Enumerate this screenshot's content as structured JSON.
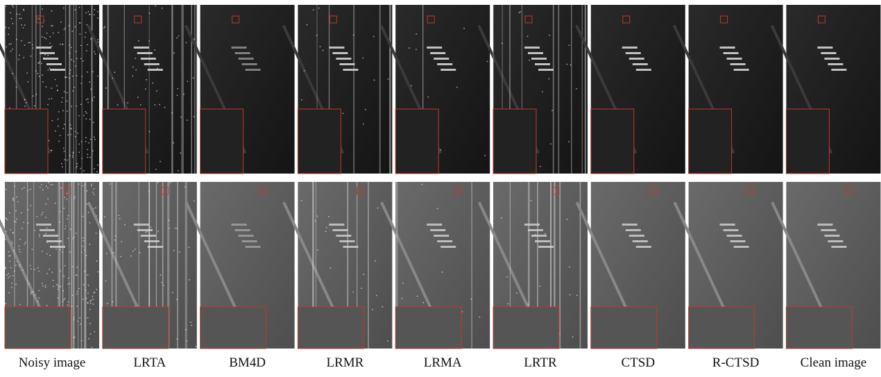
{
  "figure": {
    "columns": [
      "Noisy image",
      "LRTA",
      "BM4D",
      "LRMR",
      "LRMA",
      "LRTR",
      "CTSD",
      "R-CTSD",
      "Clean image"
    ]
  }
}
